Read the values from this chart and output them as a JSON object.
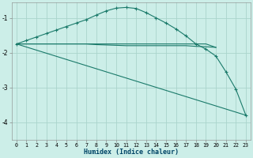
{
  "xlabel": "Humidex (Indice chaleur)",
  "bg_color": "#cceee8",
  "grid_color": "#aad4cc",
  "line_color": "#1a7a6a",
  "xlim": [
    -0.5,
    23.5
  ],
  "ylim": [
    -4.5,
    -0.55
  ],
  "yticks": [
    -4,
    -3,
    -2,
    -1
  ],
  "xticks": [
    0,
    1,
    2,
    3,
    4,
    5,
    6,
    7,
    8,
    9,
    10,
    11,
    12,
    13,
    14,
    15,
    16,
    17,
    18,
    19,
    20,
    21,
    22,
    23
  ],
  "curve1_x": [
    0,
    1,
    2,
    3,
    4,
    5,
    6,
    7,
    8,
    9,
    10,
    11,
    12,
    13,
    14,
    15,
    16,
    17,
    18,
    19,
    20,
    21,
    22,
    23
  ],
  "curve1_y": [
    -1.75,
    -1.65,
    -1.55,
    -1.45,
    -1.35,
    -1.25,
    -1.15,
    -1.05,
    -0.92,
    -0.8,
    -0.72,
    -0.7,
    -0.73,
    -0.85,
    -1.0,
    -1.15,
    -1.32,
    -1.52,
    -1.75,
    -1.9,
    -2.1,
    -2.55,
    -3.05,
    -3.8
  ],
  "curve2_x": [
    0,
    1,
    2,
    3,
    4,
    5,
    6,
    7,
    8,
    9,
    10,
    11,
    12,
    13,
    14,
    15,
    16,
    17,
    18,
    19,
    20
  ],
  "curve2_y": [
    -1.75,
    -1.75,
    -1.75,
    -1.75,
    -1.75,
    -1.75,
    -1.75,
    -1.75,
    -1.75,
    -1.75,
    -1.75,
    -1.75,
    -1.75,
    -1.75,
    -1.75,
    -1.75,
    -1.75,
    -1.75,
    -1.75,
    -1.75,
    -1.85
  ],
  "curve3_x": [
    0,
    1,
    2,
    3,
    4,
    5,
    6,
    7,
    8,
    9,
    10,
    11,
    12,
    13,
    14,
    15,
    16,
    17,
    18,
    19,
    20
  ],
  "curve3_y": [
    -1.75,
    -1.75,
    -1.75,
    -1.75,
    -1.75,
    -1.75,
    -1.75,
    -1.75,
    -1.77,
    -1.78,
    -1.79,
    -1.8,
    -1.8,
    -1.8,
    -1.8,
    -1.8,
    -1.8,
    -1.8,
    -1.82,
    -1.83,
    -1.85
  ],
  "curve4_x": [
    0,
    23
  ],
  "curve4_y": [
    -1.75,
    -3.8
  ]
}
